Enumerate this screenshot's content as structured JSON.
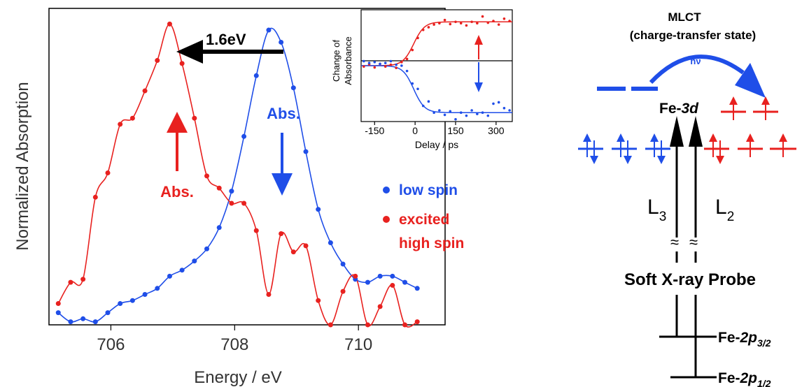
{
  "colors": {
    "low_spin": "#1f4ee8",
    "high_spin": "#e8211f",
    "axis": "#000000"
  },
  "chart_data": [
    {
      "type": "line",
      "xlabel": "Energy / eV",
      "ylabel": "Normalized Absorption",
      "xlim": [
        705.0,
        711.4
      ],
      "ylim": [
        0.0,
        1.0
      ],
      "xticks": [
        706,
        708,
        710
      ],
      "grid": false,
      "legend": {
        "placement": "right",
        "entries": [
          {
            "series": "low_spin",
            "lines": [
              "low spin"
            ]
          },
          {
            "series": "high_spin",
            "lines": [
              "excited",
              "high spin"
            ]
          }
        ]
      },
      "annotations": {
        "shift_label": "1.6eV",
        "abs_up_label": "Abs.",
        "abs_down_label": "Abs."
      },
      "series": [
        {
          "key": "low_spin",
          "name": "low spin",
          "x": [
            705.15,
            705.35,
            705.55,
            705.75,
            705.95,
            706.15,
            706.35,
            706.55,
            706.75,
            706.95,
            707.15,
            707.35,
            707.55,
            707.75,
            707.95,
            708.15,
            708.35,
            708.55,
            708.75,
            708.95,
            709.15,
            709.35,
            709.55,
            709.75,
            709.95,
            710.15,
            710.35,
            710.55,
            710.75,
            710.95
          ],
          "y": [
            0.04,
            0.01,
            0.02,
            0.01,
            0.04,
            0.07,
            0.08,
            0.1,
            0.12,
            0.16,
            0.18,
            0.21,
            0.25,
            0.32,
            0.44,
            0.62,
            0.82,
            0.97,
            0.93,
            0.78,
            0.57,
            0.38,
            0.27,
            0.2,
            0.15,
            0.14,
            0.16,
            0.16,
            0.14,
            0.12
          ]
        },
        {
          "key": "high_spin",
          "name": "excited high spin",
          "x": [
            705.15,
            705.35,
            705.55,
            705.75,
            705.95,
            706.15,
            706.35,
            706.55,
            706.75,
            706.95,
            707.15,
            707.35,
            707.55,
            707.75,
            707.95,
            708.15,
            708.35,
            708.55,
            708.75,
            708.95,
            709.15,
            709.35,
            709.55,
            709.75,
            709.95,
            710.15,
            710.35,
            710.55,
            710.75,
            710.95
          ],
          "y": [
            0.07,
            0.14,
            0.15,
            0.42,
            0.5,
            0.66,
            0.68,
            0.77,
            0.87,
            0.99,
            0.86,
            0.68,
            0.49,
            0.45,
            0.4,
            0.4,
            0.31,
            0.1,
            0.3,
            0.24,
            0.26,
            0.08,
            0.0,
            0.11,
            0.16,
            0.0,
            0.06,
            0.13,
            0.0,
            0.01
          ]
        }
      ]
    },
    {
      "type": "line",
      "xlabel": "Delay / ps",
      "ylabel": "Change of Absorbance",
      "xlim": [
        -200,
        360
      ],
      "ylim": [
        -1.25,
        1.25
      ],
      "xticks": [
        -150,
        0,
        150,
        300
      ],
      "grid": false,
      "series": [
        {
          "key": "high_spin",
          "x": [
            -190,
            -170,
            -150,
            -130,
            -110,
            -90,
            -70,
            -50,
            -30,
            -10,
            10,
            30,
            50,
            70,
            90,
            110,
            130,
            150,
            170,
            190,
            210,
            230,
            250,
            270,
            290,
            310,
            330,
            350
          ],
          "y": [
            -0.02,
            0.03,
            -0.04,
            0.04,
            -0.02,
            0.02,
            -0.05,
            0.08,
            0.15,
            0.35,
            0.62,
            0.8,
            0.86,
            0.92,
            0.95,
            1.02,
            0.93,
            0.98,
            0.95,
            0.9,
            0.98,
            0.95,
            1.1,
            0.96,
            1.0,
            0.92,
            1.05,
            1.0
          ]
        },
        {
          "key": "low_spin",
          "x": [
            -190,
            -170,
            -150,
            -130,
            -110,
            -90,
            -70,
            -50,
            -30,
            -10,
            10,
            30,
            50,
            70,
            90,
            110,
            130,
            150,
            170,
            190,
            210,
            230,
            250,
            270,
            290,
            310,
            330,
            350
          ],
          "y": [
            0.1,
            0.06,
            0.08,
            0.04,
            0.06,
            0.1,
            0.02,
            0.0,
            -0.12,
            -0.4,
            -0.52,
            -0.9,
            -0.8,
            -1.05,
            -1.0,
            -1.1,
            -1.02,
            -1.2,
            -1.05,
            -1.12,
            -1.0,
            -1.08,
            -1.05,
            -1.12,
            -0.85,
            -0.82,
            -0.95,
            -1.0
          ]
        }
      ]
    }
  ],
  "diagram": {
    "mlct_title": "MLCT",
    "mlct_subtitle": "(charge-transfer state)",
    "hv_label": "hν",
    "fe3d_prefix": "Fe-",
    "fe3d_suffix": "3d",
    "l3_base": "L",
    "l3_sub": "3",
    "l2_base": "L",
    "l2_sub": "2",
    "break_symbol": "≈",
    "probe_label": "Soft X-ray Probe",
    "fe2p32_prefix": "Fe-",
    "fe2p32_main": "2p",
    "fe2p32_sub": "3/2",
    "fe2p12_prefix": "Fe-",
    "fe2p12_main": "2p",
    "fe2p12_sub": "1/2"
  }
}
